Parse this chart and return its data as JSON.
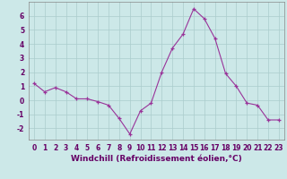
{
  "x": [
    0,
    1,
    2,
    3,
    4,
    5,
    6,
    7,
    8,
    9,
    10,
    11,
    12,
    13,
    14,
    15,
    16,
    17,
    18,
    19,
    20,
    21,
    22,
    23
  ],
  "y": [
    1.2,
    0.6,
    0.9,
    0.6,
    0.1,
    0.1,
    -0.1,
    -0.35,
    -1.3,
    -2.4,
    -0.75,
    -0.2,
    2.0,
    3.7,
    4.7,
    6.5,
    5.8,
    4.4,
    1.9,
    1.0,
    -0.2,
    -0.35,
    -1.4,
    -1.4
  ],
  "line_color": "#993399",
  "marker": "+",
  "markersize": 3,
  "linewidth": 0.8,
  "bg_color": "#cce8e8",
  "grid_color": "#aacccc",
  "xlabel": "Windchill (Refroidissement éolien,°C)",
  "xlabel_fontsize": 6.5,
  "ylabel_ticks": [
    -2,
    -1,
    0,
    1,
    2,
    3,
    4,
    5,
    6
  ],
  "xlim": [
    -0.5,
    23.5
  ],
  "ylim": [
    -2.8,
    7.0
  ],
  "tick_fontsize": 5.5,
  "tick_color": "#660066",
  "label_color": "#660066"
}
